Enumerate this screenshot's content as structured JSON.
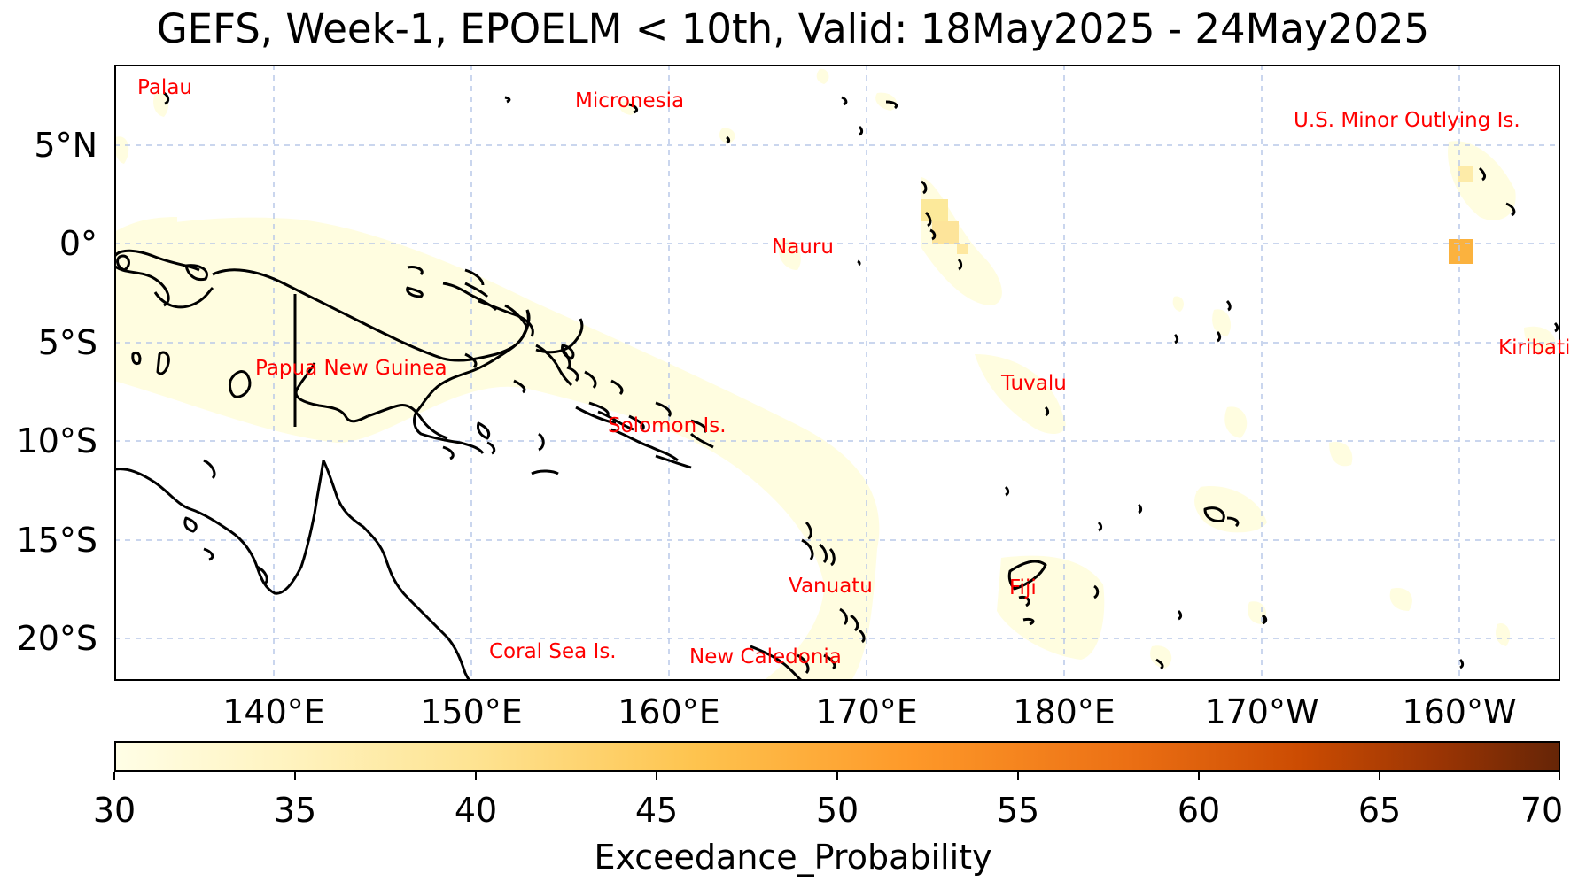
{
  "title": "GEFS, Week-1, EPOELM < 10th, Valid: 18May2025 - 24May2025",
  "lat_labels": [
    "5°N",
    "0°",
    "5°S",
    "10°S",
    "15°S",
    "20°S"
  ],
  "lon_labels": [
    "140°E",
    "150°E",
    "160°E",
    "170°E",
    "180°E",
    "170°W",
    "160°W"
  ],
  "countries": {
    "palau": "Palau",
    "micronesia": "Micronesia",
    "us_minor": "U.S. Minor Outlying Is.",
    "nauru": "Nauru",
    "kiribati": "Kiribati",
    "png": "Papua New Guinea",
    "tuvalu": "Tuvalu",
    "solomon": "Solomon Is.",
    "vanuatu": "Vanuatu",
    "fiji": "Fiji",
    "coral_sea": "Coral Sea Is.",
    "new_caledonia": "New Caledonia"
  },
  "colorbar": {
    "ticks": [
      "30",
      "35",
      "40",
      "45",
      "50",
      "55",
      "60",
      "65",
      "70"
    ],
    "label": "Exceedance_Probability",
    "colors": [
      "#fffee6",
      "#fee391",
      "#fec44f",
      "#fe9929",
      "#ec7014",
      "#cc4c02",
      "#662506"
    ]
  }
}
